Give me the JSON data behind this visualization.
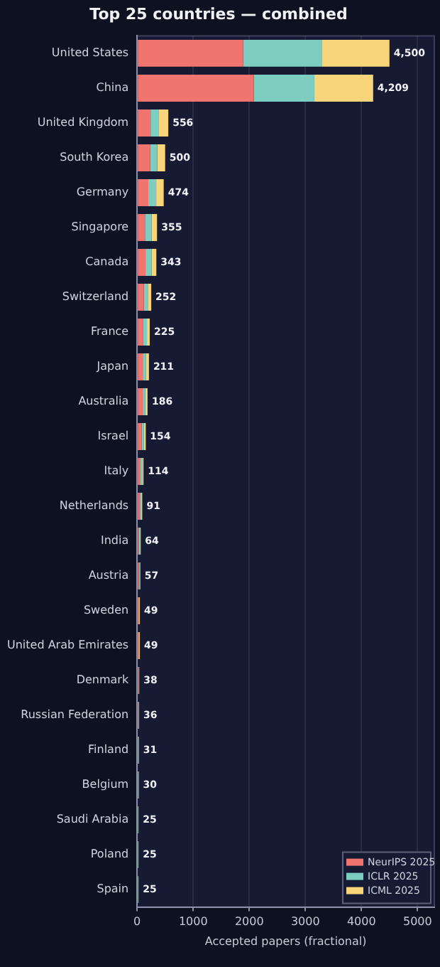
{
  "chart_data": {
    "type": "bar",
    "orientation": "horizontal",
    "stacked": true,
    "title": "Top 25 countries — combined",
    "xlabel": "Accepted papers (fractional)",
    "categories": [
      "United States",
      "China",
      "United Kingdom",
      "South Korea",
      "Germany",
      "Singapore",
      "Canada",
      "Switzerland",
      "France",
      "Japan",
      "Australia",
      "Israel",
      "Italy",
      "Netherlands",
      "India",
      "Austria",
      "Sweden",
      "United Arab Emirates",
      "Denmark",
      "Russian Federation",
      "Finland",
      "Belgium",
      "Saudi Arabia",
      "Poland",
      "Spain"
    ],
    "series": [
      {
        "name": "NeurIPS 2025",
        "color": "#f07470",
        "values": [
          1890,
          2080,
          240,
          230,
          200,
          140,
          150,
          120,
          110,
          100,
          100,
          80,
          60,
          45,
          30,
          28,
          24,
          24,
          18,
          17,
          15,
          15,
          12,
          12,
          12
        ]
      },
      {
        "name": "ICLR 2025",
        "color": "#7dcdc0",
        "values": [
          1410,
          1080,
          140,
          130,
          140,
          120,
          110,
          70,
          65,
          60,
          45,
          40,
          30,
          25,
          20,
          15,
          13,
          13,
          10,
          10,
          8,
          8,
          7,
          7,
          7
        ]
      },
      {
        "name": "ICML 2025",
        "color": "#f7d57a",
        "values": [
          1200,
          1049,
          176,
          140,
          134,
          95,
          83,
          62,
          50,
          51,
          41,
          34,
          24,
          21,
          14,
          14,
          12,
          12,
          10,
          9,
          8,
          7,
          6,
          6,
          6
        ]
      }
    ],
    "totals": [
      "4,500",
      "4,209",
      "556",
      "500",
      "474",
      "355",
      "343",
      "252",
      "225",
      "211",
      "186",
      "154",
      "114",
      "91",
      "64",
      "57",
      "49",
      "49",
      "38",
      "36",
      "31",
      "30",
      "25",
      "25",
      "25"
    ],
    "xlim": [
      0,
      5300
    ],
    "xticks": [
      0,
      1000,
      2000,
      3000,
      4000,
      5000
    ],
    "grid": "x",
    "legend": "bottom right"
  }
}
